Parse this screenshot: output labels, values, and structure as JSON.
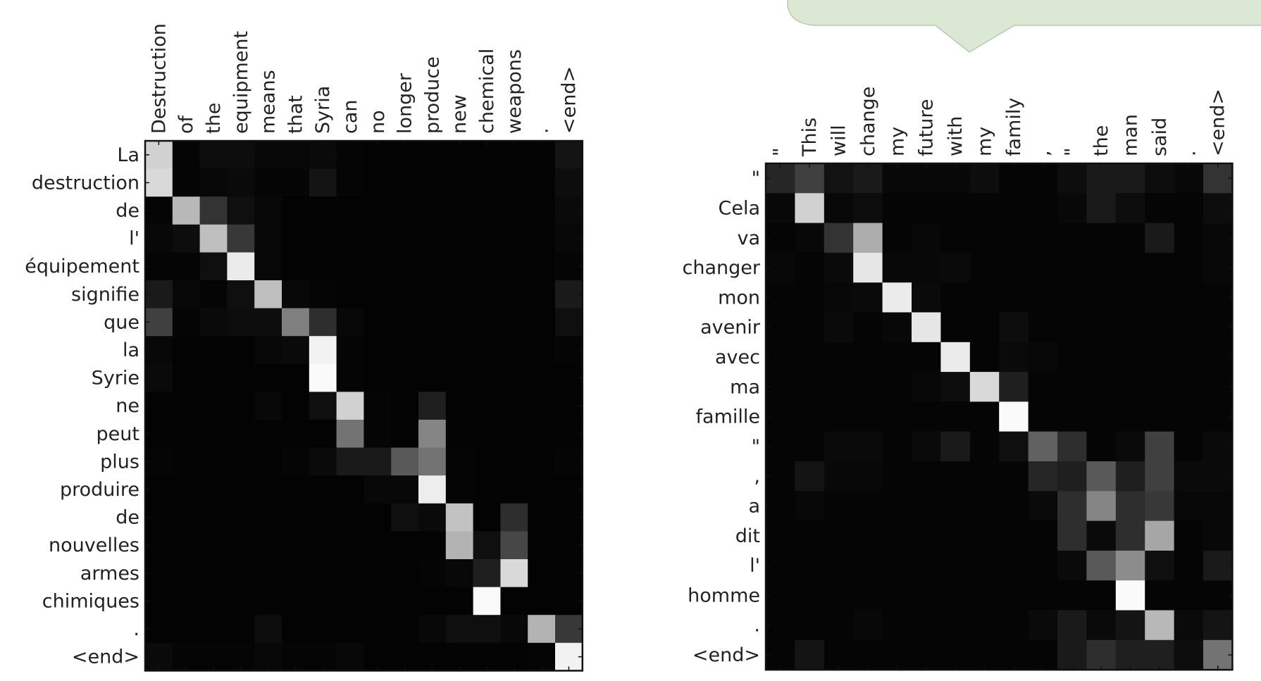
{
  "chart_data": [
    {
      "type": "heatmap",
      "title": "",
      "xlabel": "",
      "ylabel": "",
      "colormap": "grayscale (black = 0, white = 1)",
      "x_labels": [
        "Destruction",
        "of",
        "the",
        "equipment",
        "means",
        "that",
        "Syria",
        "can",
        "no",
        "longer",
        "produce",
        "new",
        "chemical",
        "weapons",
        ".",
        "<end>"
      ],
      "y_labels": [
        "La",
        "destruction",
        "de",
        "l'",
        "équipement",
        "signifie",
        "que",
        "la",
        "Syrie",
        "ne",
        "peut",
        "plus",
        "produire",
        "de",
        "nouvelles",
        "armes",
        "chimiques",
        ".",
        "<end>"
      ],
      "values": [
        [
          0.82,
          0.02,
          0.05,
          0.05,
          0.03,
          0.03,
          0.04,
          0.02,
          0.01,
          0.01,
          0.01,
          0.01,
          0.01,
          0.01,
          0.01,
          0.08
        ],
        [
          0.85,
          0.02,
          0.03,
          0.04,
          0.02,
          0.02,
          0.08,
          0.02,
          0.01,
          0.01,
          0.01,
          0.01,
          0.01,
          0.01,
          0.01,
          0.05
        ],
        [
          0.02,
          0.72,
          0.2,
          0.06,
          0.03,
          0.01,
          0.01,
          0.01,
          0.01,
          0.01,
          0.01,
          0.01,
          0.01,
          0.01,
          0.01,
          0.04
        ],
        [
          0.03,
          0.05,
          0.75,
          0.22,
          0.03,
          0.01,
          0.01,
          0.01,
          0.01,
          0.01,
          0.01,
          0.01,
          0.01,
          0.01,
          0.01,
          0.03
        ],
        [
          0.02,
          0.02,
          0.06,
          0.92,
          0.03,
          0.01,
          0.01,
          0.01,
          0.01,
          0.01,
          0.01,
          0.01,
          0.01,
          0.01,
          0.01,
          0.02
        ],
        [
          0.1,
          0.03,
          0.02,
          0.06,
          0.75,
          0.03,
          0.02,
          0.01,
          0.01,
          0.01,
          0.01,
          0.01,
          0.01,
          0.01,
          0.01,
          0.1
        ],
        [
          0.25,
          0.02,
          0.04,
          0.05,
          0.05,
          0.5,
          0.18,
          0.03,
          0.01,
          0.01,
          0.01,
          0.01,
          0.01,
          0.01,
          0.01,
          0.06
        ],
        [
          0.03,
          0.01,
          0.01,
          0.01,
          0.03,
          0.04,
          0.95,
          0.02,
          0.01,
          0.01,
          0.01,
          0.01,
          0.01,
          0.01,
          0.01,
          0.02
        ],
        [
          0.04,
          0.01,
          0.01,
          0.01,
          0.01,
          0.01,
          0.98,
          0.02,
          0.01,
          0.01,
          0.01,
          0.01,
          0.01,
          0.01,
          0.01,
          0.01
        ],
        [
          0.01,
          0.01,
          0.01,
          0.01,
          0.03,
          0.01,
          0.06,
          0.82,
          0.02,
          0.01,
          0.12,
          0.01,
          0.01,
          0.01,
          0.01,
          0.01
        ],
        [
          0.01,
          0.01,
          0.01,
          0.01,
          0.01,
          0.01,
          0.01,
          0.45,
          0.02,
          0.01,
          0.52,
          0.01,
          0.01,
          0.01,
          0.01,
          0.01
        ],
        [
          0.02,
          0.01,
          0.01,
          0.01,
          0.01,
          0.02,
          0.04,
          0.1,
          0.1,
          0.35,
          0.45,
          0.02,
          0.01,
          0.01,
          0.01,
          0.02
        ],
        [
          0.01,
          0.01,
          0.01,
          0.01,
          0.01,
          0.01,
          0.01,
          0.01,
          0.03,
          0.03,
          0.93,
          0.02,
          0.01,
          0.01,
          0.01,
          0.01
        ],
        [
          0.01,
          0.01,
          0.01,
          0.01,
          0.01,
          0.01,
          0.01,
          0.01,
          0.01,
          0.06,
          0.04,
          0.76,
          0.01,
          0.18,
          0.01,
          0.01
        ],
        [
          0.01,
          0.01,
          0.01,
          0.01,
          0.01,
          0.01,
          0.01,
          0.01,
          0.01,
          0.01,
          0.01,
          0.7,
          0.06,
          0.28,
          0.01,
          0.01
        ],
        [
          0.01,
          0.01,
          0.01,
          0.01,
          0.01,
          0.01,
          0.01,
          0.01,
          0.01,
          0.01,
          0.02,
          0.03,
          0.12,
          0.85,
          0.01,
          0.01
        ],
        [
          0.01,
          0.01,
          0.01,
          0.01,
          0.01,
          0.01,
          0.01,
          0.01,
          0.01,
          0.01,
          0.01,
          0.01,
          0.98,
          0.01,
          0.01,
          0.01
        ],
        [
          0.01,
          0.01,
          0.01,
          0.01,
          0.05,
          0.01,
          0.01,
          0.01,
          0.01,
          0.01,
          0.03,
          0.06,
          0.06,
          0.03,
          0.7,
          0.22
        ],
        [
          0.04,
          0.02,
          0.02,
          0.02,
          0.03,
          0.02,
          0.02,
          0.03,
          0.01,
          0.01,
          0.01,
          0.01,
          0.01,
          0.01,
          0.02,
          0.95
        ]
      ]
    },
    {
      "type": "heatmap",
      "title": "",
      "xlabel": "",
      "ylabel": "",
      "colormap": "grayscale (black = 0, white = 1)",
      "x_labels": [
        "\"",
        "This",
        "will",
        "change",
        "my",
        "future",
        "with",
        "my",
        "family",
        ",",
        "\"",
        "the",
        "man",
        "said",
        ".",
        "<end>"
      ],
      "y_labels": [
        "\"",
        "Cela",
        "va",
        "changer",
        "mon",
        "avenir",
        "avec",
        "ma",
        "famille",
        "\"",
        ",",
        "a",
        "dit",
        "l'",
        "homme",
        ".",
        "<end>"
      ],
      "values": [
        [
          0.15,
          0.25,
          0.07,
          0.1,
          0.03,
          0.03,
          0.03,
          0.05,
          0.02,
          0.02,
          0.05,
          0.1,
          0.1,
          0.05,
          0.03,
          0.2
        ],
        [
          0.03,
          0.82,
          0.03,
          0.05,
          0.02,
          0.02,
          0.02,
          0.02,
          0.02,
          0.02,
          0.03,
          0.1,
          0.05,
          0.02,
          0.02,
          0.05
        ],
        [
          0.02,
          0.03,
          0.2,
          0.68,
          0.02,
          0.03,
          0.02,
          0.02,
          0.02,
          0.02,
          0.02,
          0.02,
          0.02,
          0.1,
          0.02,
          0.03
        ],
        [
          0.03,
          0.02,
          0.04,
          0.9,
          0.03,
          0.03,
          0.04,
          0.02,
          0.02,
          0.02,
          0.02,
          0.02,
          0.02,
          0.02,
          0.02,
          0.03
        ],
        [
          0.02,
          0.02,
          0.03,
          0.04,
          0.92,
          0.04,
          0.02,
          0.02,
          0.02,
          0.02,
          0.02,
          0.02,
          0.02,
          0.02,
          0.02,
          0.02
        ],
        [
          0.02,
          0.02,
          0.04,
          0.02,
          0.03,
          0.9,
          0.02,
          0.02,
          0.05,
          0.02,
          0.02,
          0.02,
          0.02,
          0.02,
          0.02,
          0.02
        ],
        [
          0.02,
          0.02,
          0.02,
          0.02,
          0.02,
          0.02,
          0.92,
          0.02,
          0.04,
          0.03,
          0.02,
          0.02,
          0.02,
          0.02,
          0.02,
          0.02
        ],
        [
          0.02,
          0.02,
          0.02,
          0.02,
          0.02,
          0.03,
          0.05,
          0.85,
          0.12,
          0.02,
          0.02,
          0.02,
          0.02,
          0.02,
          0.02,
          0.02
        ],
        [
          0.02,
          0.02,
          0.02,
          0.02,
          0.02,
          0.02,
          0.02,
          0.02,
          0.98,
          0.02,
          0.02,
          0.02,
          0.02,
          0.02,
          0.02,
          0.02
        ],
        [
          0.02,
          0.02,
          0.04,
          0.04,
          0.02,
          0.04,
          0.1,
          0.02,
          0.06,
          0.38,
          0.18,
          0.02,
          0.04,
          0.25,
          0.02,
          0.04
        ],
        [
          0.02,
          0.08,
          0.03,
          0.03,
          0.02,
          0.02,
          0.02,
          0.02,
          0.02,
          0.15,
          0.12,
          0.35,
          0.12,
          0.25,
          0.04,
          0.04
        ],
        [
          0.02,
          0.03,
          0.02,
          0.02,
          0.02,
          0.02,
          0.02,
          0.02,
          0.02,
          0.04,
          0.18,
          0.52,
          0.18,
          0.22,
          0.03,
          0.03
        ],
        [
          0.02,
          0.02,
          0.02,
          0.02,
          0.02,
          0.02,
          0.02,
          0.02,
          0.02,
          0.02,
          0.18,
          0.04,
          0.18,
          0.65,
          0.02,
          0.03
        ],
        [
          0.02,
          0.02,
          0.02,
          0.02,
          0.02,
          0.02,
          0.02,
          0.02,
          0.02,
          0.02,
          0.04,
          0.35,
          0.55,
          0.06,
          0.02,
          0.1
        ],
        [
          0.02,
          0.02,
          0.02,
          0.02,
          0.02,
          0.02,
          0.02,
          0.02,
          0.02,
          0.02,
          0.02,
          0.02,
          0.98,
          0.02,
          0.02,
          0.02
        ],
        [
          0.02,
          0.02,
          0.02,
          0.03,
          0.02,
          0.02,
          0.02,
          0.02,
          0.02,
          0.04,
          0.1,
          0.04,
          0.08,
          0.72,
          0.04,
          0.08
        ],
        [
          0.02,
          0.08,
          0.02,
          0.02,
          0.02,
          0.02,
          0.02,
          0.02,
          0.02,
          0.02,
          0.1,
          0.18,
          0.12,
          0.12,
          0.05,
          0.45
        ]
      ]
    }
  ]
}
